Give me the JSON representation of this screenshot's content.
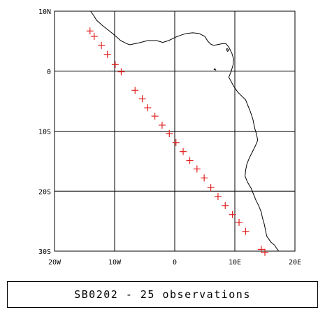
{
  "chart_data": {
    "type": "map",
    "x_range_deg": [
      -20,
      20
    ],
    "y_range_deg": [
      -30,
      10
    ],
    "grid": true,
    "grid_step_deg": 10,
    "x_ticks": [
      {
        "value": -20,
        "label": "20W"
      },
      {
        "value": -10,
        "label": "10W"
      },
      {
        "value": 0,
        "label": "0"
      },
      {
        "value": 10,
        "label": "10E"
      },
      {
        "value": 20,
        "label": "20E"
      }
    ],
    "y_ticks": [
      {
        "value": 10,
        "label": "10N"
      },
      {
        "value": 0,
        "label": "0"
      },
      {
        "value": -10,
        "label": "10S"
      },
      {
        "value": -20,
        "label": "20S"
      },
      {
        "value": -30,
        "label": "30S"
      }
    ],
    "marker_color": "#e02020",
    "line_color": "#000000",
    "observations": [
      {
        "lon": -14.1,
        "lat": 6.7
      },
      {
        "lon": -13.4,
        "lat": 5.8
      },
      {
        "lon": -12.2,
        "lat": 4.3
      },
      {
        "lon": -11.2,
        "lat": 2.8
      },
      {
        "lon": -9.9,
        "lat": 1.1
      },
      {
        "lon": -8.9,
        "lat": -0.1
      },
      {
        "lon": -6.6,
        "lat": -3.2
      },
      {
        "lon": -5.4,
        "lat": -4.6
      },
      {
        "lon": -4.5,
        "lat": -6.1
      },
      {
        "lon": -3.3,
        "lat": -7.5
      },
      {
        "lon": -2.1,
        "lat": -9.0
      },
      {
        "lon": -0.9,
        "lat": -10.4
      },
      {
        "lon": 0.2,
        "lat": -11.9
      },
      {
        "lon": 1.4,
        "lat": -13.4
      },
      {
        "lon": 2.5,
        "lat": -14.9
      },
      {
        "lon": 3.7,
        "lat": -16.3
      },
      {
        "lon": 4.9,
        "lat": -17.8
      },
      {
        "lon": 6.0,
        "lat": -19.4
      },
      {
        "lon": 7.2,
        "lat": -20.9
      },
      {
        "lon": 8.4,
        "lat": -22.4
      },
      {
        "lon": 9.6,
        "lat": -23.9
      },
      {
        "lon": 10.7,
        "lat": -25.2
      },
      {
        "lon": 11.8,
        "lat": -26.7
      },
      {
        "lon": 14.4,
        "lat": -29.7
      },
      {
        "lon": 15.0,
        "lat": -30.2
      }
    ],
    "coastline": [
      [
        -14.0,
        10.0
      ],
      [
        -13.5,
        9.3
      ],
      [
        -13.0,
        8.5
      ],
      [
        -12.0,
        7.6
      ],
      [
        -11.0,
        6.8
      ],
      [
        -10.0,
        6.0
      ],
      [
        -9.0,
        5.1
      ],
      [
        -8.0,
        4.6
      ],
      [
        -7.5,
        4.4
      ],
      [
        -6.0,
        4.7
      ],
      [
        -4.5,
        5.1
      ],
      [
        -3.0,
        5.1
      ],
      [
        -2.0,
        4.8
      ],
      [
        -1.0,
        5.1
      ],
      [
        0.0,
        5.6
      ],
      [
        1.0,
        6.0
      ],
      [
        2.0,
        6.3
      ],
      [
        3.0,
        6.4
      ],
      [
        4.0,
        6.3
      ],
      [
        5.0,
        5.8
      ],
      [
        5.5,
        5.0
      ],
      [
        6.0,
        4.5
      ],
      [
        6.5,
        4.3
      ],
      [
        7.0,
        4.4
      ],
      [
        8.0,
        4.6
      ],
      [
        8.5,
        4.6
      ],
      [
        9.0,
        4.0
      ],
      [
        9.5,
        3.0
      ],
      [
        9.8,
        2.0
      ],
      [
        9.7,
        1.0
      ],
      [
        9.4,
        0.0
      ],
      [
        9.0,
        -1.0
      ],
      [
        9.8,
        -2.5
      ],
      [
        10.5,
        -3.5
      ],
      [
        11.2,
        -4.2
      ],
      [
        11.8,
        -4.8
      ],
      [
        12.2,
        -5.8
      ],
      [
        12.5,
        -6.5
      ],
      [
        13.0,
        -8.0
      ],
      [
        13.3,
        -9.5
      ],
      [
        13.6,
        -10.5
      ],
      [
        13.8,
        -11.5
      ],
      [
        13.4,
        -12.5
      ],
      [
        12.9,
        -13.5
      ],
      [
        12.4,
        -14.5
      ],
      [
        12.0,
        -15.5
      ],
      [
        11.8,
        -16.5
      ],
      [
        11.7,
        -17.5
      ],
      [
        12.1,
        -18.5
      ],
      [
        12.7,
        -19.5
      ],
      [
        13.1,
        -20.5
      ],
      [
        13.5,
        -21.5
      ],
      [
        14.0,
        -22.5
      ],
      [
        14.4,
        -23.5
      ],
      [
        14.6,
        -24.5
      ],
      [
        14.9,
        -25.5
      ],
      [
        15.1,
        -26.5
      ],
      [
        15.3,
        -27.5
      ],
      [
        16.0,
        -28.5
      ],
      [
        16.6,
        -29.0
      ],
      [
        17.0,
        -29.6
      ],
      [
        17.3,
        -30.0
      ]
    ],
    "islands": [
      [
        [
          6.5,
          0.3
        ],
        [
          6.8,
          0.2
        ],
        [
          6.7,
          0.4
        ],
        [
          6.5,
          0.3
        ]
      ],
      [
        [
          8.7,
          3.8
        ],
        [
          9.0,
          3.5
        ],
        [
          8.8,
          3.3
        ],
        [
          8.6,
          3.6
        ],
        [
          8.7,
          3.8
        ]
      ]
    ]
  },
  "caption": {
    "text": "SB0202 - 25 observations"
  }
}
